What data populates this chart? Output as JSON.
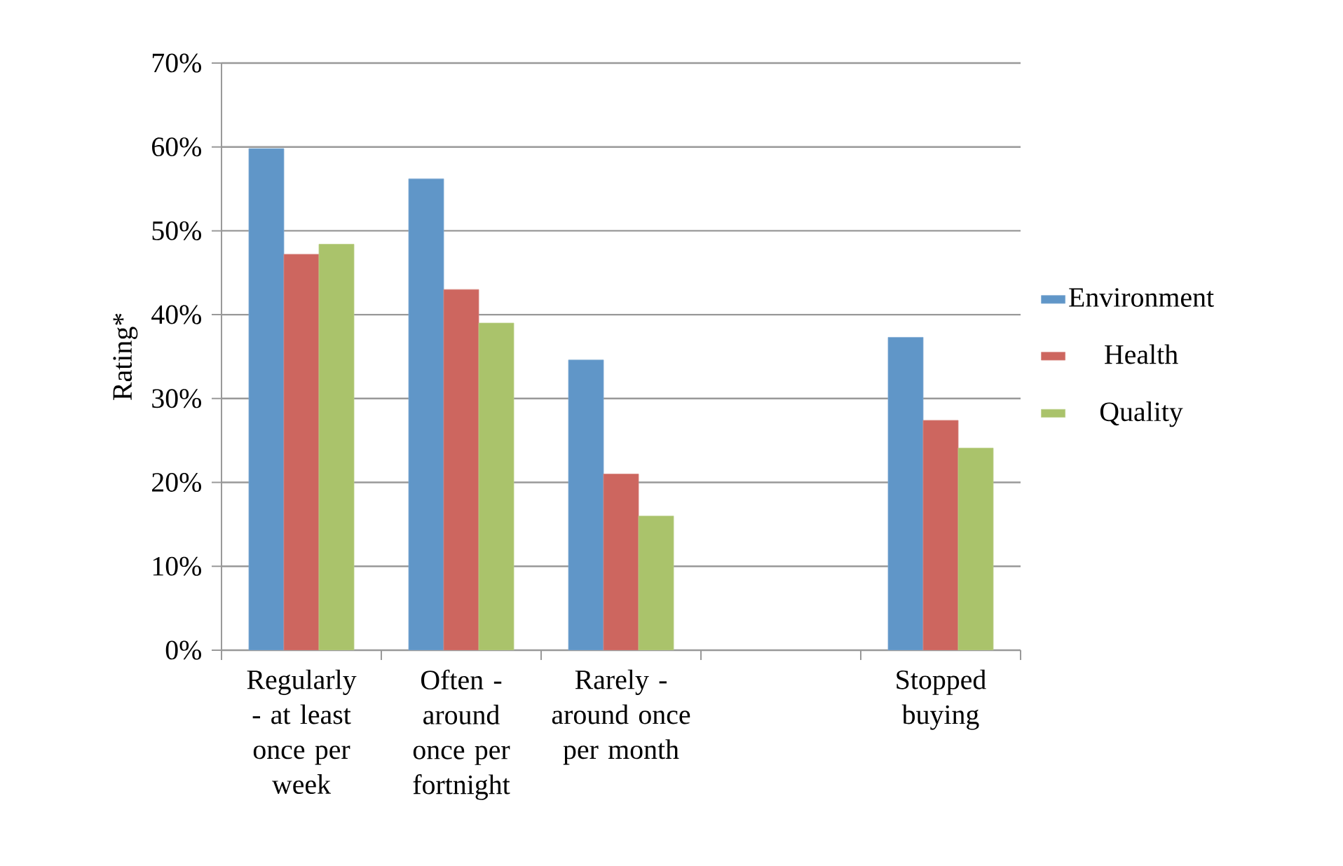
{
  "chart_data": {
    "type": "bar",
    "ylabel": "Rating*",
    "categories": [
      "Regularly - at least once per week",
      "Often - around once per fortnight",
      "Rarely - around once per month",
      null,
      "Stopped buying"
    ],
    "series": [
      {
        "name": "Environment",
        "color": "#6096c8",
        "values": [
          59.8,
          56.2,
          34.6,
          null,
          37.3
        ]
      },
      {
        "name": "Health",
        "color": "#cd665f",
        "values": [
          47.2,
          43.0,
          21.0,
          null,
          27.4
        ]
      },
      {
        "name": "Quality",
        "color": "#aac36b",
        "values": [
          48.4,
          39.0,
          16.0,
          null,
          24.1
        ]
      }
    ],
    "ylim": [
      0,
      70
    ],
    "yticks": [
      {
        "value": 0,
        "label": "0%"
      },
      {
        "value": 10,
        "label": "10%"
      },
      {
        "value": 20,
        "label": "20%"
      },
      {
        "value": 30,
        "label": "30%"
      },
      {
        "value": 40,
        "label": "40%"
      },
      {
        "value": 50,
        "label": "50%"
      },
      {
        "value": 60,
        "label": "60%"
      },
      {
        "value": 70,
        "label": "70%"
      }
    ],
    "grid": "y",
    "legend": "right"
  }
}
